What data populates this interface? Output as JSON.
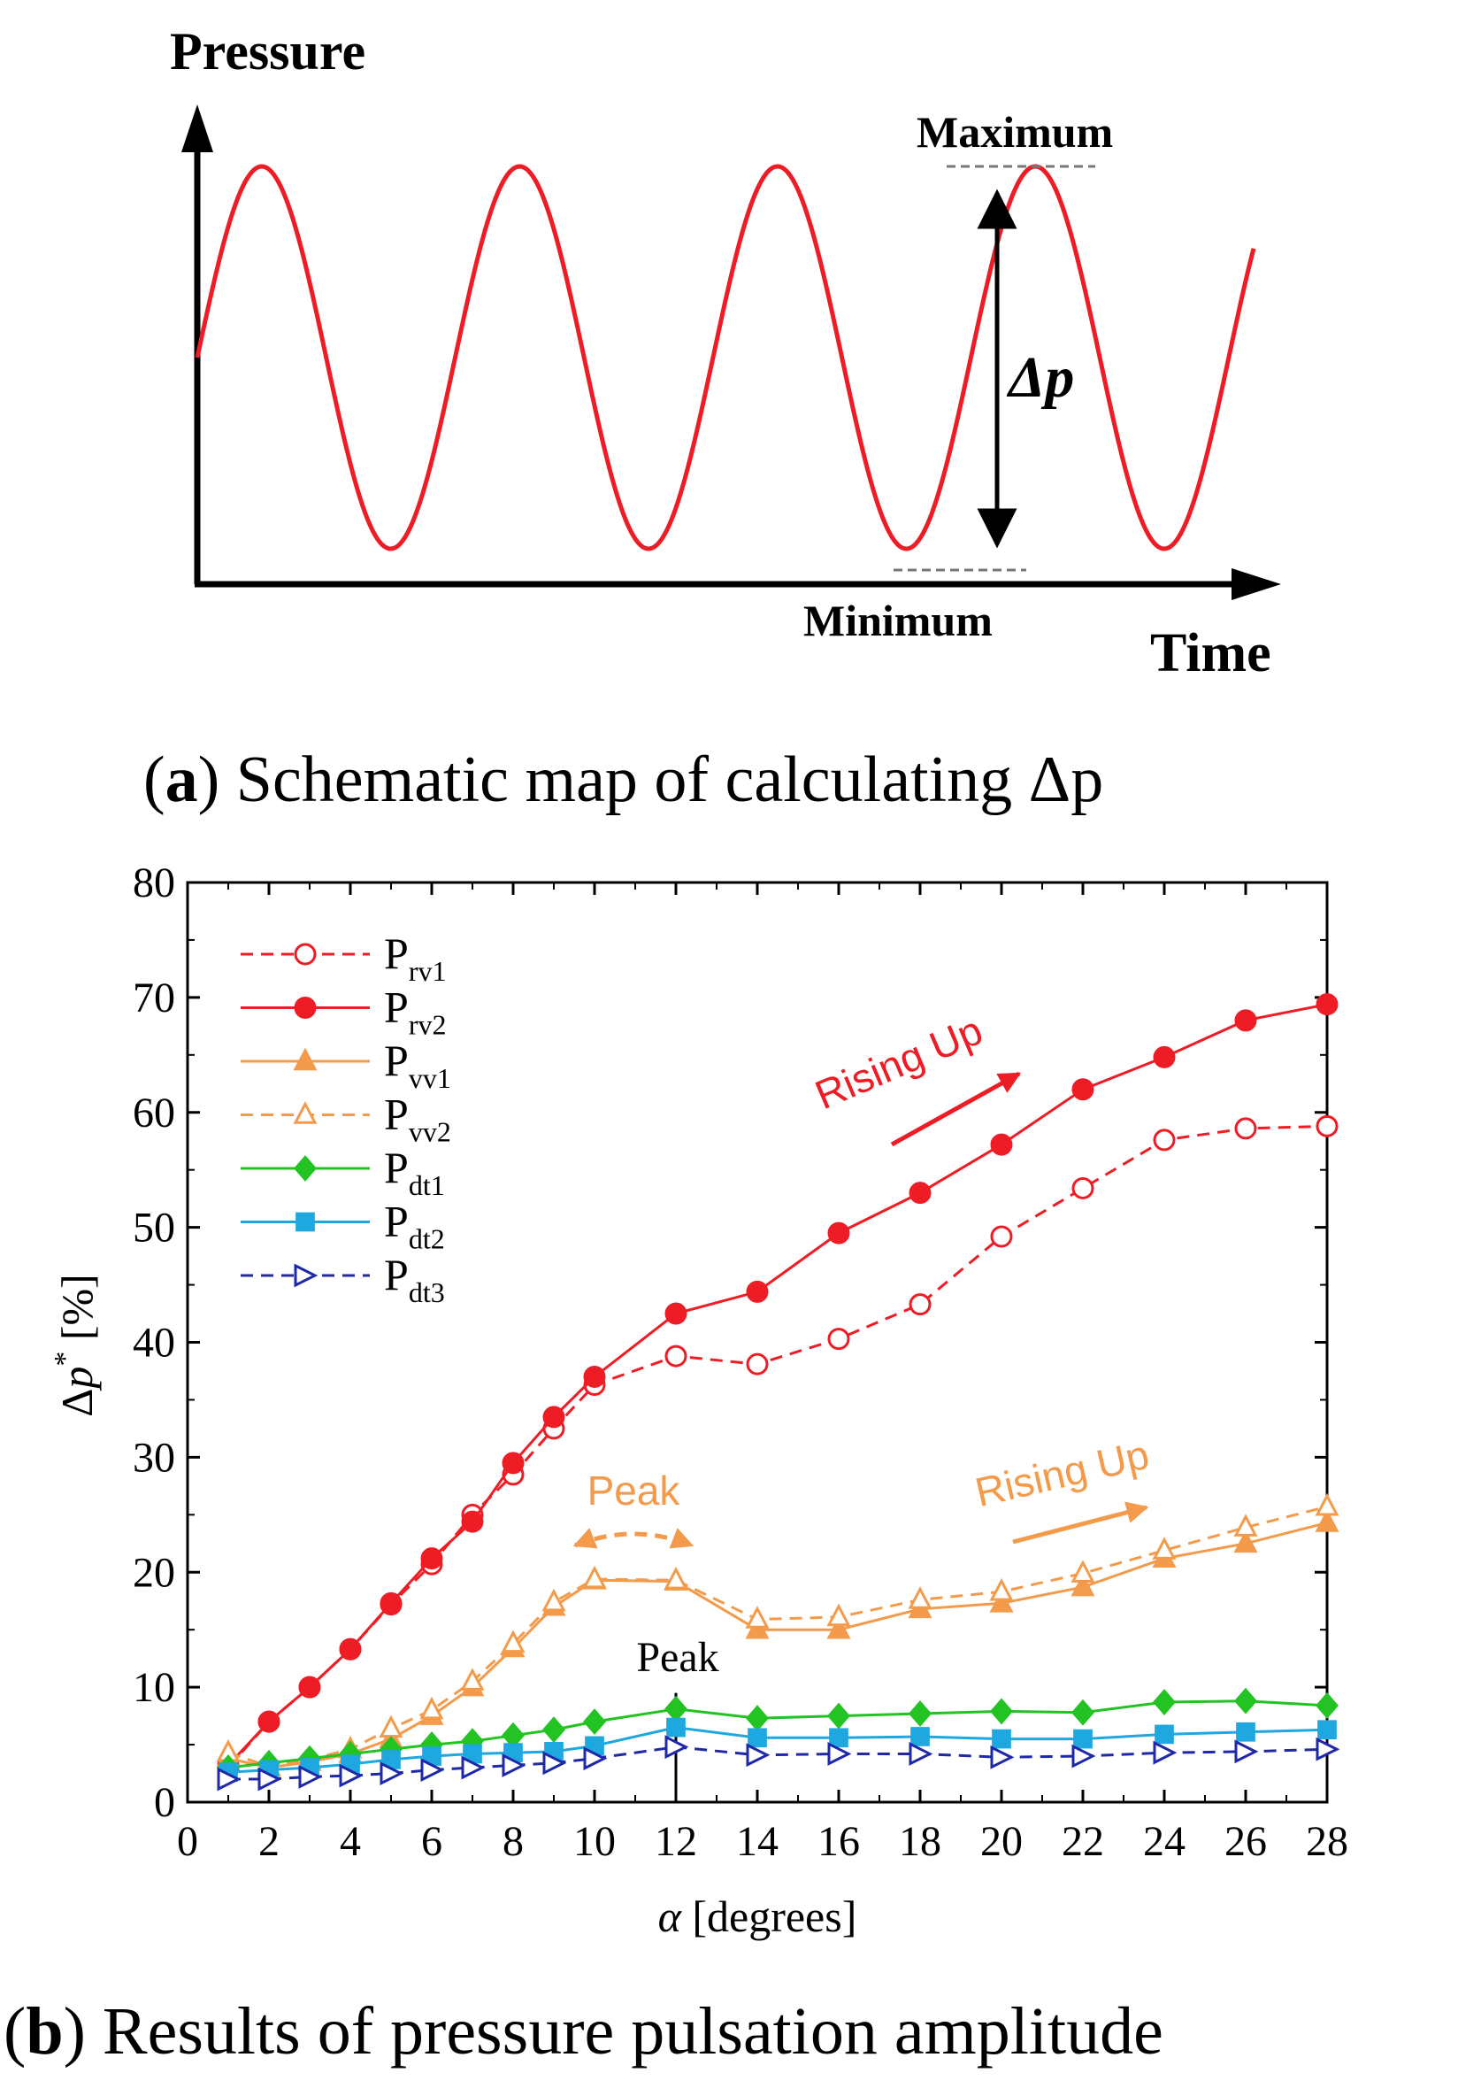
{
  "colors": {
    "red": "#ee1c25",
    "orange": "#f39a4b",
    "green": "#22c322",
    "cyan": "#1fa8e0",
    "blue": "#1f28a8",
    "black": "#000000",
    "grey": "#777777"
  },
  "panel_a": {
    "y_axis_label": "Pressure",
    "x_axis_label": "Time",
    "max_label": "Maximum",
    "min_label": "Minimum",
    "delta_label": "Δp",
    "caption_letter": "a",
    "caption_text": ") Schematic map of calculating Δp",
    "caption_open": "("
  },
  "panel_b": {
    "caption_open": "(",
    "caption_letter": "b",
    "caption_text": ") Results of pressure pulsation amplitude",
    "ann_rising_red": "Rising Up",
    "ann_rising_orange": "Rising Up",
    "ann_peak_orange": "Peak",
    "ann_peak_black": "Peak"
  },
  "chart_data": [
    {
      "type": "line",
      "title": "Schematic map of calculating Δp",
      "xlabel": "Time",
      "ylabel": "Pressure",
      "series": [
        {
          "name": "pressure (schematic sine)",
          "cycles": 4.1,
          "start_phase": "mid-rising"
        }
      ],
      "annotations": [
        "Maximum",
        "Minimum",
        "Δp"
      ]
    },
    {
      "type": "line",
      "title": "Results of pressure pulsation amplitude",
      "xlabel": "α [degrees]",
      "ylabel": "Δp* [%]",
      "xlim": [
        0,
        28
      ],
      "ylim": [
        0,
        80
      ],
      "xticks": [
        0,
        2,
        4,
        6,
        8,
        10,
        12,
        14,
        16,
        18,
        20,
        22,
        24,
        26,
        28
      ],
      "yticks": [
        0,
        10,
        20,
        30,
        40,
        50,
        60,
        70,
        80
      ],
      "x": [
        1,
        2,
        3,
        4,
        5,
        6,
        7,
        8,
        9,
        10,
        12,
        14,
        16,
        18,
        20,
        22,
        24,
        26,
        28
      ],
      "series": [
        {
          "name": "P",
          "sub": "rv1",
          "color": "red",
          "dash": true,
          "marker": "circle-open",
          "values": [
            3,
            7,
            10,
            13.3,
            17.2,
            20.7,
            25,
            28.5,
            32.5,
            36.3,
            38.8,
            38.1,
            40.3,
            43.3,
            49.2,
            53.4,
            57.6,
            58.6,
            58.8
          ]
        },
        {
          "name": "P",
          "sub": "rv2",
          "color": "red",
          "dash": false,
          "marker": "circle-filled",
          "values": [
            3.2,
            7,
            10,
            13.3,
            17.3,
            21.2,
            24.4,
            29.5,
            33.5,
            37,
            42.5,
            44.4,
            49.5,
            53,
            57.2,
            62,
            64.8,
            68,
            69.4
          ]
        },
        {
          "name": "P",
          "sub": "vv1",
          "color": "orange",
          "dash": false,
          "marker": "triangle-filled",
          "values": [
            3.8,
            3,
            3.5,
            4.2,
            5.5,
            7.5,
            10,
            13.4,
            17,
            19.3,
            19.2,
            15,
            15,
            16.8,
            17.3,
            18.7,
            21.2,
            22.5,
            24.3
          ]
        },
        {
          "name": "P",
          "sub": "vv2",
          "color": "orange",
          "dash": true,
          "marker": "triangle-open",
          "values": [
            4.3,
            3.1,
            3.7,
            4.6,
            6.4,
            8,
            10.5,
            13.8,
            17.4,
            19.4,
            19.3,
            15.9,
            16.1,
            17.6,
            18.3,
            19.9,
            21.9,
            23.9,
            25.7
          ]
        },
        {
          "name": "P",
          "sub": "dt1",
          "color": "green",
          "dash": false,
          "marker": "diamond-filled",
          "values": [
            3,
            3.4,
            3.8,
            4.2,
            4.6,
            5,
            5.3,
            5.8,
            6.3,
            7,
            8.1,
            7.3,
            7.5,
            7.7,
            7.9,
            7.8,
            8.7,
            8.8,
            8.4
          ]
        },
        {
          "name": "P",
          "sub": "dt2",
          "color": "cyan",
          "dash": false,
          "marker": "square-filled",
          "values": [
            2.6,
            2.8,
            3,
            3.3,
            3.7,
            4,
            4.2,
            4.3,
            4.4,
            4.9,
            6.5,
            5.6,
            5.6,
            5.7,
            5.5,
            5.5,
            5.9,
            6.1,
            6.3
          ]
        },
        {
          "name": "P",
          "sub": "dt3",
          "color": "blue",
          "dash": true,
          "marker": "triangle-right-open",
          "values": [
            2,
            2,
            2.2,
            2.3,
            2.5,
            2.8,
            3,
            3.2,
            3.4,
            3.8,
            4.8,
            4.1,
            4.2,
            4.2,
            3.9,
            4,
            4.3,
            4.4,
            4.6
          ]
        }
      ],
      "legend_position": "top-left",
      "annotations": [
        "Rising Up",
        "Rising Up",
        "Peak",
        "Peak"
      ]
    }
  ]
}
